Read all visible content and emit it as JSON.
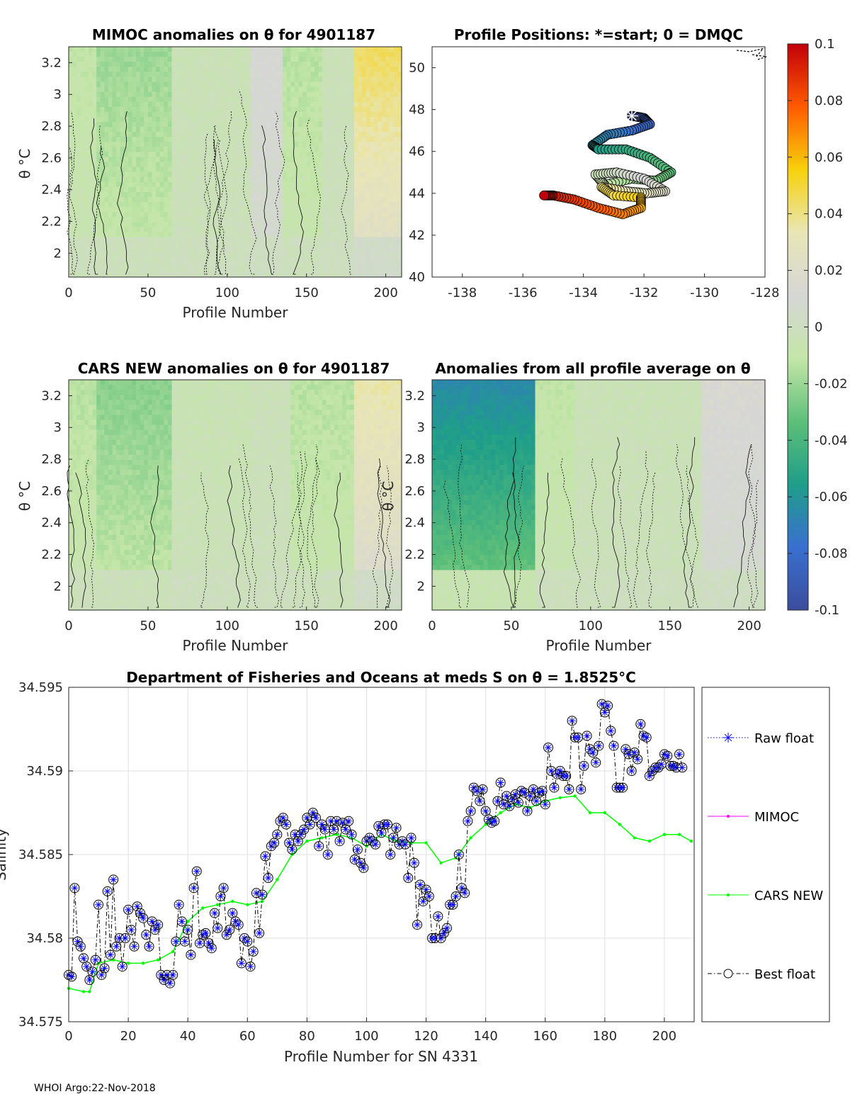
{
  "footer": "WHOI Argo:22-Nov-2018",
  "colorbar": {
    "ticks": [
      "0.1",
      "0.08",
      "0.06",
      "0.04",
      "0.02",
      "0",
      "-0.02",
      "-0.04",
      "-0.06",
      "-0.08",
      "-0.1"
    ],
    "stops": [
      "#c2000b",
      "#ff5a00",
      "#f7d10c",
      "#e8e6b6",
      "#d6d6d6",
      "#c4e6a8",
      "#5dbf79",
      "#1f9e89",
      "#3a6fd0",
      "#3b4d9c"
    ]
  },
  "chart_data": [
    {
      "type": "heatmap",
      "title": "MIMOC anomalies on θ  for 4901187",
      "xlabel": "Profile Number",
      "ylabel": "θ °C",
      "xlim": [
        0,
        210
      ],
      "ylim": [
        1.85,
        3.3
      ],
      "xticks": [
        "0",
        "50",
        "100",
        "150",
        "200"
      ],
      "yticks": [
        "2",
        "2.2",
        "2.4",
        "2.6",
        "2.8",
        "3",
        "3.2"
      ],
      "zones": [
        {
          "x": [
            0,
            18
          ],
          "anomaly": -0.008
        },
        {
          "x": [
            18,
            65
          ],
          "anomaly": -0.014
        },
        {
          "x": [
            65,
            115
          ],
          "anomaly": -0.003
        },
        {
          "x": [
            115,
            135
          ],
          "anomaly": 0.008
        },
        {
          "x": [
            135,
            160
          ],
          "anomaly": -0.01
        },
        {
          "x": [
            160,
            180
          ],
          "anomaly": -0.002
        },
        {
          "x": [
            180,
            210
          ],
          "anomaly": 0.032
        }
      ]
    },
    {
      "type": "scatter",
      "title": "Profile Positions: *=start; 0 = DMQC",
      "xlabel": "",
      "ylabel": "",
      "xlim": [
        -139,
        -128
      ],
      "ylim": [
        40,
        51
      ],
      "xticks": [
        "-138",
        "-136",
        "-134",
        "-132",
        "-130",
        "-128"
      ],
      "yticks": [
        "40",
        "42",
        "44",
        "46",
        "48",
        "50"
      ],
      "start": {
        "lon": -132.4,
        "lat": 47.7
      },
      "track": [
        [
          -132.4,
          47.7
        ],
        [
          -132.0,
          47.6
        ],
        [
          -131.8,
          47.3
        ],
        [
          -132.4,
          47.0
        ],
        [
          -133.2,
          46.8
        ],
        [
          -133.7,
          46.3
        ],
        [
          -133.5,
          46.1
        ],
        [
          -132.6,
          46.1
        ],
        [
          -131.8,
          45.7
        ],
        [
          -131.1,
          45.0
        ],
        [
          -131.6,
          44.6
        ],
        [
          -132.4,
          44.7
        ],
        [
          -133.3,
          44.4
        ],
        [
          -133.6,
          44.9
        ],
        [
          -132.9,
          45.0
        ],
        [
          -132.0,
          44.7
        ],
        [
          -131.3,
          44.1
        ],
        [
          -131.9,
          44.0
        ],
        [
          -132.6,
          44.1
        ],
        [
          -133.4,
          44.3
        ],
        [
          -133.0,
          43.9
        ],
        [
          -132.1,
          43.8
        ],
        [
          -132.1,
          43.3
        ],
        [
          -132.7,
          43.0
        ],
        [
          -133.5,
          43.3
        ],
        [
          -134.3,
          43.7
        ],
        [
          -135.0,
          43.9
        ],
        [
          -135.3,
          43.9
        ]
      ]
    },
    {
      "type": "heatmap",
      "title": "CARS NEW anomalies on θ for 4901187",
      "xlabel": "Profile Number",
      "ylabel": "θ °C",
      "xlim": [
        0,
        210
      ],
      "ylim": [
        1.85,
        3.3
      ],
      "xticks": [
        "0",
        "50",
        "100",
        "150",
        "200"
      ],
      "yticks": [
        "2",
        "2.2",
        "2.4",
        "2.6",
        "2.8",
        "3",
        "3.2"
      ],
      "zones": [
        {
          "x": [
            0,
            18
          ],
          "anomaly": -0.01
        },
        {
          "x": [
            18,
            65
          ],
          "anomaly": -0.017
        },
        {
          "x": [
            65,
            115
          ],
          "anomaly": -0.004
        },
        {
          "x": [
            115,
            140
          ],
          "anomaly": -0.002
        },
        {
          "x": [
            140,
            180
          ],
          "anomaly": -0.01
        },
        {
          "x": [
            180,
            210
          ],
          "anomaly": 0.025
        }
      ]
    },
    {
      "type": "heatmap",
      "title": "Anomalies from all profile average on θ",
      "xlabel": "Profile Number",
      "ylabel": "θ °C",
      "xlim": [
        0,
        210
      ],
      "ylim": [
        1.85,
        3.3
      ],
      "xticks": [
        "0",
        "50",
        "100",
        "150",
        "200"
      ],
      "yticks": [
        "2",
        "2.2",
        "2.4",
        "2.6",
        "2.8",
        "3",
        "3.2"
      ],
      "zones": [
        {
          "x": [
            0,
            65
          ],
          "anomaly": -0.045
        },
        {
          "x": [
            65,
            90
          ],
          "anomaly": -0.008
        },
        {
          "x": [
            90,
            170
          ],
          "anomaly": -0.003
        },
        {
          "x": [
            170,
            210
          ],
          "anomaly": 0.01
        }
      ]
    },
    {
      "type": "line",
      "title": "Department of Fisheries and Oceans at meds S on θ = 1.8525°C",
      "xlabel": "Profile Number for SN 4331",
      "ylabel": "Salinity",
      "xlim": [
        0,
        210
      ],
      "ylim": [
        34.575,
        34.595
      ],
      "grid": true,
      "legend": "right",
      "xticks": [
        "0",
        "20",
        "40",
        "60",
        "80",
        "100",
        "120",
        "140",
        "160",
        "180",
        "200"
      ],
      "yticks": [
        "34.575",
        "34.58",
        "34.585",
        "34.59",
        "34.595"
      ],
      "series": [
        {
          "name": "Raw float",
          "color": "#0000ff"
        },
        {
          "name": "MIMOC",
          "color": "#ff00ff",
          "values": []
        },
        {
          "name": "CARS NEW",
          "color": "#00ff00",
          "x": [
            0,
            5,
            7,
            10,
            15,
            20,
            25,
            30,
            35,
            40,
            45,
            50,
            55,
            60,
            65,
            70,
            75,
            80,
            85,
            90,
            95,
            100,
            105,
            110,
            115,
            120,
            125,
            130,
            135,
            140,
            145,
            150,
            155,
            160,
            165,
            170,
            175,
            180,
            185,
            190,
            195,
            200,
            205,
            209
          ],
          "values": [
            34.577,
            34.5768,
            34.5768,
            34.5785,
            34.5787,
            34.5785,
            34.5785,
            34.5787,
            34.5792,
            34.581,
            34.5818,
            34.582,
            34.5822,
            34.582,
            34.5822,
            34.5835,
            34.585,
            34.5858,
            34.586,
            34.5862,
            34.586,
            34.5855,
            34.5862,
            34.5858,
            34.5857,
            34.5857,
            34.5845,
            34.5848,
            34.586,
            34.5868,
            34.5875,
            34.588,
            34.5878,
            34.5882,
            34.5884,
            34.5885,
            34.5875,
            34.5875,
            34.5868,
            34.586,
            34.5858,
            34.5862,
            34.5862,
            34.5858
          ]
        },
        {
          "name": "Best float",
          "color": "#000000",
          "values": [
            34.5778,
            34.5777,
            34.583,
            34.5798,
            34.5795,
            34.5788,
            34.5783,
            34.5775,
            34.578,
            34.5787,
            34.582,
            34.5778,
            34.5782,
            34.5828,
            34.579,
            34.5835,
            34.5795,
            34.58,
            34.5783,
            34.58,
            34.5817,
            34.5805,
            34.5795,
            34.5819,
            34.5815,
            34.5812,
            34.5802,
            34.5795,
            34.581,
            34.5805,
            34.5808,
            34.5778,
            34.5775,
            34.5778,
            34.5773,
            34.5778,
            34.5798,
            34.582,
            34.581,
            34.5798,
            34.5805,
            34.579,
            34.583,
            34.584,
            34.5797,
            34.5802,
            34.5803,
            34.5797,
            34.5794,
            34.5815,
            34.5806,
            34.5825,
            34.583,
            34.5802,
            34.5805,
            34.5815,
            34.581,
            34.5808,
            34.5785,
            34.58,
            34.5798,
            34.5783,
            34.5792,
            34.5827,
            34.5803,
            34.5826,
            34.5849,
            34.5836,
            34.5855,
            34.5857,
            34.5862,
            34.587,
            34.5872,
            34.5868,
            34.5857,
            34.5853,
            34.5862,
            34.5858,
            34.5862,
            34.5865,
            34.5872,
            34.5868,
            34.5875,
            34.5872,
            34.5855,
            34.5868,
            34.5865,
            34.585,
            34.587,
            34.5865,
            34.587,
            34.5858,
            34.5869,
            34.5865,
            34.587,
            34.5862,
            34.5847,
            34.5853,
            34.5845,
            34.5842,
            34.5858,
            34.586,
            34.5858,
            34.5856,
            34.5867,
            34.5863,
            34.5868,
            34.5868,
            34.585,
            34.586,
            34.5866,
            34.5856,
            34.5858,
            34.5856,
            34.5836,
            34.586,
            34.5845,
            34.5808,
            34.5832,
            34.5822,
            34.5829,
            34.5825,
            34.58,
            34.58,
            34.5813,
            34.58,
            34.5803,
            34.5806,
            34.582,
            34.582,
            34.5825,
            34.585,
            34.583,
            34.5827,
            34.587,
            34.5876,
            34.589,
            34.5888,
            34.5882,
            34.5889,
            34.5876,
            34.5871,
            34.5869,
            34.587,
            34.5882,
            34.5893,
            34.588,
            34.5885,
            34.5879,
            34.5883,
            34.5886,
            34.5881,
            34.5888,
            34.5887,
            34.5876,
            34.5885,
            34.5889,
            34.5882,
            34.5887,
            34.5888,
            34.588,
            34.5914,
            34.59,
            34.589,
            34.5898,
            34.59,
            34.5897,
            34.5897,
            34.5889,
            34.593,
            34.592,
            34.592,
            34.5889,
            34.5903,
            34.5921,
            34.5913,
            34.5911,
            34.5905,
            34.5915,
            34.594,
            34.5935,
            34.5939,
            34.5924,
            34.5915,
            34.589,
            34.589,
            34.589,
            34.5913,
            34.591,
            34.59,
            34.5911,
            34.5907,
            34.5928,
            34.5921,
            34.592,
            34.5897,
            34.59,
            34.5902,
            34.5902,
            34.5904,
            34.591,
            34.5909,
            34.5903,
            34.5903,
            34.5902,
            34.591,
            34.5902
          ]
        }
      ]
    }
  ]
}
